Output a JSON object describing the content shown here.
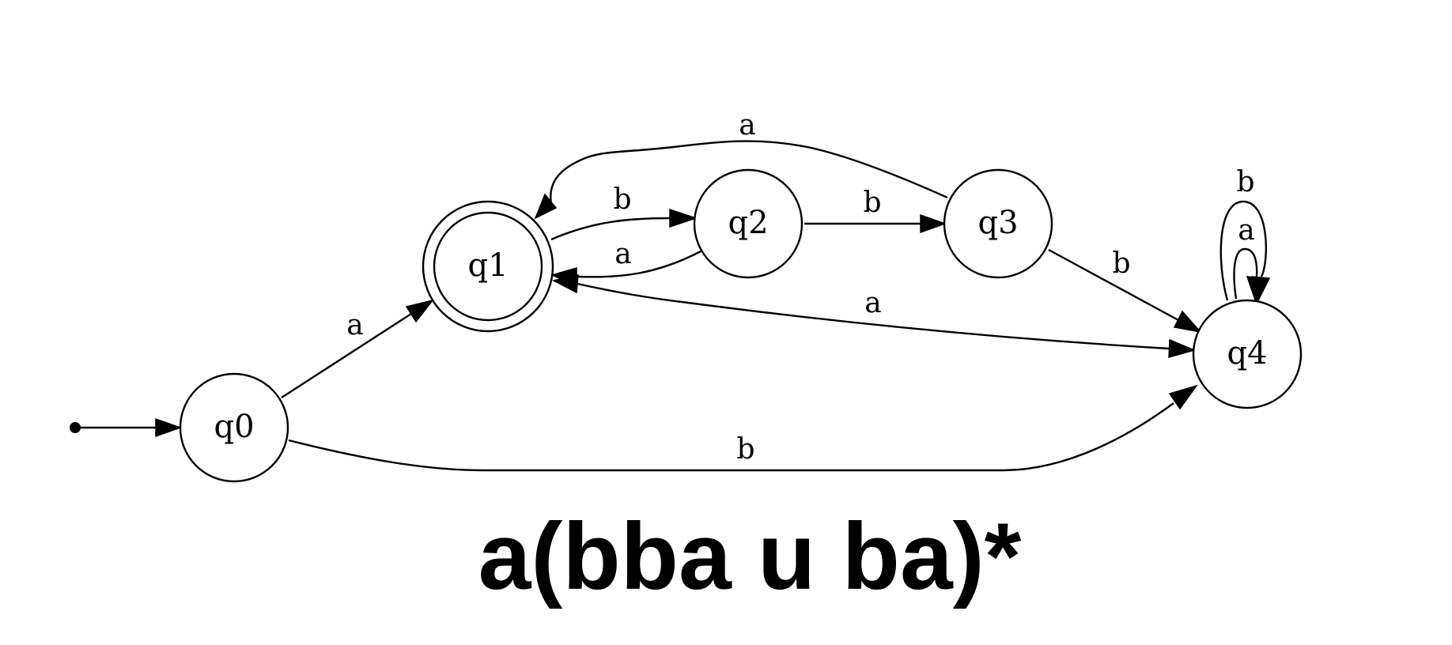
{
  "automaton": {
    "start_state": "q0",
    "accepting_states": [
      "q1"
    ],
    "states": [
      {
        "id": "q0",
        "label": "q0"
      },
      {
        "id": "q1",
        "label": "q1"
      },
      {
        "id": "q2",
        "label": "q2"
      },
      {
        "id": "q3",
        "label": "q3"
      },
      {
        "id": "q4",
        "label": "q4"
      }
    ],
    "transitions": [
      {
        "from": "q0",
        "to": "q1",
        "symbol": "a"
      },
      {
        "from": "q0",
        "to": "q4",
        "symbol": "b"
      },
      {
        "from": "q1",
        "to": "q2",
        "symbol": "b"
      },
      {
        "from": "q1",
        "to": "q4",
        "symbol": "a"
      },
      {
        "from": "q2",
        "to": "q1",
        "symbol": "a"
      },
      {
        "from": "q2",
        "to": "q3",
        "symbol": "b"
      },
      {
        "from": "q3",
        "to": "q1",
        "symbol": "a"
      },
      {
        "from": "q3",
        "to": "q4",
        "symbol": "b"
      },
      {
        "from": "q4",
        "to": "q4",
        "symbol": "a"
      },
      {
        "from": "q4",
        "to": "q4",
        "symbol": "b"
      }
    ]
  },
  "caption": "a(bba u ba)*"
}
